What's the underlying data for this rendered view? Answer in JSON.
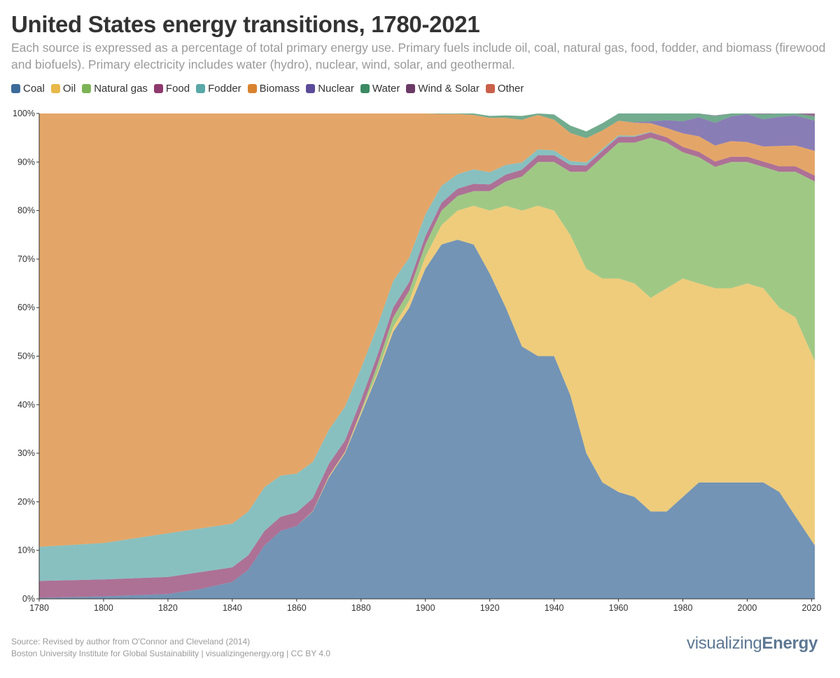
{
  "header": {
    "title": "United States energy transitions, 1780-2021",
    "subtitle": "Each source is expressed as a percentage of total primary energy use. Primary fuels include oil, coal, natural gas, food, fodder, and biomass (firewood and biofuels). Primary electricity includes water (hydro), nuclear, wind, solar, and geothermal."
  },
  "legend": [
    {
      "label": "Coal",
      "color": "#3d6b99"
    },
    {
      "label": "Oil",
      "color": "#e8b84a"
    },
    {
      "label": "Natural gas",
      "color": "#7cb356"
    },
    {
      "label": "Food",
      "color": "#8e3a6e"
    },
    {
      "label": "Fodder",
      "color": "#5aa8a8"
    },
    {
      "label": "Biomass",
      "color": "#d9832e"
    },
    {
      "label": "Nuclear",
      "color": "#5b4b99"
    },
    {
      "label": "Water",
      "color": "#3b8a63"
    },
    {
      "label": "Wind & Solar",
      "color": "#6b3a66"
    },
    {
      "label": "Other",
      "color": "#c9604a"
    }
  ],
  "footer": {
    "source_line1": "Source: Revised by author from O'Connor and Cleveland (2014)",
    "source_line2": "Boston University Institute for Global Sustainability | visualizingenergy.org | CC BY 4.0",
    "brand_light": "visualizing",
    "brand_bold": "Energy"
  },
  "chart_data": {
    "type": "area",
    "stacked": true,
    "normalized_percent": true,
    "title": "United States energy transitions, 1780-2021",
    "xlabel": "",
    "ylabel": "",
    "xlim": [
      1780,
      2021
    ],
    "ylim": [
      0,
      100
    ],
    "x_ticks": [
      1780,
      1800,
      1820,
      1840,
      1860,
      1880,
      1900,
      1920,
      1940,
      1960,
      1980,
      2000,
      2020
    ],
    "y_ticks": [
      0,
      10,
      20,
      30,
      40,
      50,
      60,
      70,
      80,
      90,
      100
    ],
    "y_tick_suffix": "%",
    "grid": false,
    "fill_opacity": 0.72,
    "x": [
      1780,
      1800,
      1820,
      1830,
      1840,
      1845,
      1850,
      1855,
      1860,
      1865,
      1870,
      1875,
      1880,
      1885,
      1890,
      1895,
      1900,
      1905,
      1910,
      1915,
      1920,
      1925,
      1930,
      1935,
      1940,
      1945,
      1950,
      1955,
      1960,
      1965,
      1970,
      1975,
      1980,
      1985,
      1990,
      1995,
      2000,
      2005,
      2010,
      2015,
      2021
    ],
    "series": [
      {
        "name": "Coal",
        "color": "#3d6b99",
        "values": [
          0.2,
          0.5,
          1,
          2,
          3.5,
          6,
          11,
          14,
          15,
          18,
          25,
          30,
          38,
          46,
          55,
          60,
          68,
          73,
          74,
          73,
          67,
          60,
          52,
          50,
          50,
          42,
          30,
          24,
          22,
          21,
          18,
          18,
          21,
          24,
          24,
          24,
          24,
          24,
          22,
          17,
          11
        ]
      },
      {
        "name": "Oil",
        "color": "#e8b84a",
        "values": [
          0,
          0,
          0,
          0,
          0,
          0,
          0,
          0,
          0,
          0.1,
          0.3,
          0.3,
          0.5,
          0.5,
          1,
          1.5,
          2.5,
          4,
          6,
          8,
          13,
          21,
          28,
          31,
          30,
          33,
          38,
          42,
          44,
          44,
          44,
          46,
          45,
          41,
          40,
          40,
          41,
          40,
          38,
          41,
          38
        ]
      },
      {
        "name": "Natural gas",
        "color": "#7cb356",
        "values": [
          0,
          0,
          0,
          0,
          0,
          0,
          0,
          0,
          0,
          0,
          0,
          0,
          0.3,
          1.5,
          2,
          2,
          2.5,
          3,
          3,
          3,
          4,
          5,
          7,
          9,
          10,
          13,
          20,
          25,
          28,
          29,
          33,
          30,
          26,
          26,
          25,
          26,
          25,
          25,
          28,
          30,
          37
        ]
      },
      {
        "name": "Food",
        "color": "#8e3a6e",
        "values": [
          3.5,
          3.5,
          3.5,
          3.5,
          3,
          3,
          3,
          2.9,
          2.8,
          2.6,
          2.5,
          2.3,
          2.2,
          2,
          2,
          1.8,
          1.7,
          1.6,
          1.5,
          1.5,
          1.4,
          1.4,
          1.4,
          1.4,
          1.4,
          1.4,
          1.3,
          1.3,
          1.2,
          1.2,
          1.1,
          1.1,
          1.1,
          1.1,
          1.1,
          1.1,
          1.1,
          1.1,
          1.1,
          1.1,
          1.2
        ]
      },
      {
        "name": "Fodder",
        "color": "#5aa8a8",
        "values": [
          7,
          7.5,
          9,
          9,
          9,
          9,
          9,
          8.5,
          8,
          7.5,
          7,
          7,
          6.5,
          6,
          5.5,
          5,
          4.5,
          3.5,
          3,
          3,
          2.5,
          2,
          1.5,
          1.2,
          1,
          0.8,
          0.6,
          0.4,
          0.3,
          0.2,
          0.1,
          0,
          0,
          0,
          0,
          0,
          0,
          0,
          0,
          0,
          0
        ]
      },
      {
        "name": "Biomass",
        "color": "#d9832e",
        "values": [
          89.3,
          88.5,
          86.5,
          85.5,
          84.5,
          82,
          77,
          74.6,
          74.2,
          71.8,
          65.2,
          60.4,
          52.5,
          44,
          34.5,
          29.7,
          20.8,
          14.8,
          12.4,
          11.2,
          11.2,
          9.7,
          8.8,
          7.1,
          6.3,
          5.8,
          5,
          3.8,
          3,
          2.7,
          1.8,
          1.9,
          2.8,
          3.2,
          3.3,
          3.2,
          3,
          3.1,
          4.2,
          4.3,
          5.1
        ]
      },
      {
        "name": "Nuclear",
        "color": "#5b4b99",
        "values": [
          0,
          0,
          0,
          0,
          0,
          0,
          0,
          0,
          0,
          0,
          0,
          0,
          0,
          0,
          0,
          0,
          0,
          0,
          0,
          0,
          0,
          0,
          0,
          0,
          0,
          0,
          0,
          0,
          0,
          0.1,
          0.4,
          1.6,
          2.5,
          3.9,
          4.7,
          5.1,
          5.8,
          5.6,
          6,
          6.2,
          6.2
        ]
      },
      {
        "name": "Water",
        "color": "#3b8a63",
        "values": [
          0,
          0,
          0,
          0,
          0,
          0,
          0,
          0,
          0,
          0,
          0,
          0,
          0,
          0,
          0,
          0,
          0,
          0.1,
          0.1,
          0.3,
          0.4,
          0.5,
          0.8,
          1.1,
          1.1,
          1.5,
          1.4,
          1.5,
          1.5,
          1.8,
          2,
          2.3,
          1.8,
          1.3,
          1.4,
          1.2,
          0.9,
          1.1,
          0.9,
          1,
          0.9
        ]
      },
      {
        "name": "Wind & Solar",
        "color": "#6b3a66",
        "values": [
          0,
          0,
          0,
          0,
          0,
          0,
          0,
          0,
          0,
          0,
          0,
          0,
          0,
          0,
          0,
          0,
          0,
          0,
          0,
          0,
          0,
          0,
          0,
          0,
          0,
          0,
          0,
          0,
          0,
          0,
          0,
          0,
          0,
          0,
          0.1,
          0.1,
          0.1,
          0.2,
          0.6,
          1.3,
          1.7
        ]
      },
      {
        "name": "Other",
        "color": "#c9604a",
        "values": [
          0,
          0,
          0,
          0,
          0,
          0,
          0,
          0,
          0,
          0,
          0,
          0,
          0,
          0,
          0,
          0,
          0,
          0,
          0,
          0,
          0,
          0,
          0,
          0,
          0,
          0,
          0,
          0,
          0,
          0,
          0,
          0,
          0,
          0,
          0,
          0.2,
          0.3,
          0.3,
          0.4,
          0.3,
          0.4
        ]
      }
    ]
  }
}
